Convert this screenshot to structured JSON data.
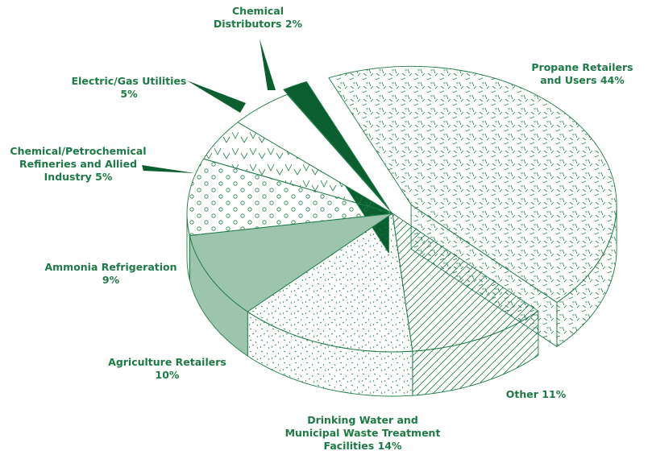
{
  "chart_data": {
    "type": "pie",
    "categories": [
      "Propane Retailers and Users",
      "Other",
      "Drinking Water and Municipal Waste Treatment Facilities",
      "Agriculture Retailers",
      "Ammonia Refrigeration",
      "Chemical/Petrochemical Refineries and Allied Industry",
      "Electric/Gas Utilities",
      "Chemical Distributors"
    ],
    "values": [
      44,
      11,
      14,
      10,
      9,
      5,
      5,
      2
    ],
    "value_labels": [
      "44%",
      "11%",
      "14%",
      "10%",
      "9%",
      "5%",
      "5%",
      "2%"
    ],
    "colors": [
      "#ffffff",
      "#ffffff",
      "#ffffff",
      "#9dc5ae",
      "#ffffff",
      "#ffffff",
      "#ffffff",
      "#0b5e30"
    ],
    "patterns": [
      "dashes",
      "hatch",
      "specks",
      null,
      "circles",
      "chevrons",
      null,
      null
    ]
  }
}
